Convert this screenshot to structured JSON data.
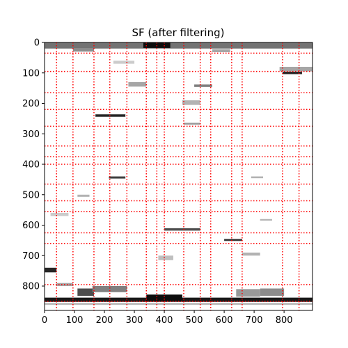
{
  "chart_data": {
    "type": "heatmap",
    "title": "SF (after filtering)",
    "xlabel": "",
    "ylabel": "",
    "xlim": [
      0,
      895
    ],
    "ylim": [
      880,
      0
    ],
    "xticks": [
      0,
      100,
      200,
      300,
      400,
      500,
      600,
      700,
      800
    ],
    "yticks": [
      0,
      100,
      200,
      300,
      400,
      500,
      600,
      700,
      800
    ],
    "colormap": "gray_r",
    "grid_color": "#ff0000",
    "grid_style": "dotted",
    "vertical_lines": [
      40,
      95,
      165,
      218,
      275,
      340,
      375,
      400,
      465,
      520,
      555,
      625,
      660,
      795,
      850
    ],
    "horizontal_lines": [
      35,
      95,
      165,
      220,
      275,
      340,
      375,
      400,
      465,
      520,
      555,
      625,
      660,
      795,
      850
    ],
    "features": [
      {
        "x0": 0,
        "x1": 895,
        "y0": 0,
        "y1": 20,
        "intensity": 0.55
      },
      {
        "x0": 330,
        "x1": 420,
        "y0": 0,
        "y1": 18,
        "intensity": 0.95
      },
      {
        "x0": 0,
        "x1": 895,
        "y0": 838,
        "y1": 852,
        "intensity": 0.9
      },
      {
        "x0": 340,
        "x1": 460,
        "y0": 828,
        "y1": 848,
        "intensity": 0.95
      },
      {
        "x0": 0,
        "x1": 40,
        "y0": 740,
        "y1": 755,
        "intensity": 0.85
      },
      {
        "x0": 110,
        "x1": 165,
        "y0": 808,
        "y1": 832,
        "intensity": 0.7
      },
      {
        "x0": 160,
        "x1": 275,
        "y0": 800,
        "y1": 820,
        "intensity": 0.5
      },
      {
        "x0": 170,
        "x1": 270,
        "y0": 236,
        "y1": 244,
        "intensity": 0.85
      },
      {
        "x0": 215,
        "x1": 270,
        "y0": 440,
        "y1": 447,
        "intensity": 0.75
      },
      {
        "x0": 795,
        "x1": 860,
        "y0": 96,
        "y1": 104,
        "intensity": 0.85
      },
      {
        "x0": 785,
        "x1": 895,
        "y0": 80,
        "y1": 95,
        "intensity": 0.35
      },
      {
        "x0": 400,
        "x1": 520,
        "y0": 610,
        "y1": 618,
        "intensity": 0.7
      },
      {
        "x0": 600,
        "x1": 660,
        "y0": 645,
        "y1": 652,
        "intensity": 0.75
      },
      {
        "x0": 280,
        "x1": 340,
        "y0": 130,
        "y1": 145,
        "intensity": 0.35
      },
      {
        "x0": 500,
        "x1": 560,
        "y0": 138,
        "y1": 146,
        "intensity": 0.5
      },
      {
        "x0": 640,
        "x1": 720,
        "y0": 810,
        "y1": 835,
        "intensity": 0.4
      },
      {
        "x0": 720,
        "x1": 800,
        "y0": 808,
        "y1": 832,
        "intensity": 0.45
      },
      {
        "x0": 40,
        "x1": 95,
        "y0": 790,
        "y1": 800,
        "intensity": 0.35
      },
      {
        "x0": 0,
        "x1": 895,
        "y0": 855,
        "y1": 862,
        "intensity": 0.25
      },
      {
        "x0": 95,
        "x1": 165,
        "y0": 20,
        "y1": 30,
        "intensity": 0.45
      },
      {
        "x0": 560,
        "x1": 620,
        "y0": 22,
        "y1": 32,
        "intensity": 0.35
      },
      {
        "x0": 460,
        "x1": 520,
        "y0": 190,
        "y1": 205,
        "intensity": 0.3
      },
      {
        "x0": 465,
        "x1": 520,
        "y0": 264,
        "y1": 270,
        "intensity": 0.4
      },
      {
        "x0": 660,
        "x1": 720,
        "y0": 690,
        "y1": 700,
        "intensity": 0.3
      },
      {
        "x0": 20,
        "x1": 80,
        "y0": 560,
        "y1": 570,
        "intensity": 0.2
      },
      {
        "x0": 720,
        "x1": 760,
        "y0": 580,
        "y1": 585,
        "intensity": 0.3
      },
      {
        "x0": 380,
        "x1": 430,
        "y0": 700,
        "y1": 715,
        "intensity": 0.25
      },
      {
        "x0": 110,
        "x1": 150,
        "y0": 500,
        "y1": 507,
        "intensity": 0.3
      },
      {
        "x0": 690,
        "x1": 730,
        "y0": 440,
        "y1": 446,
        "intensity": 0.3
      },
      {
        "x0": 230,
        "x1": 300,
        "y0": 60,
        "y1": 70,
        "intensity": 0.2
      }
    ]
  }
}
